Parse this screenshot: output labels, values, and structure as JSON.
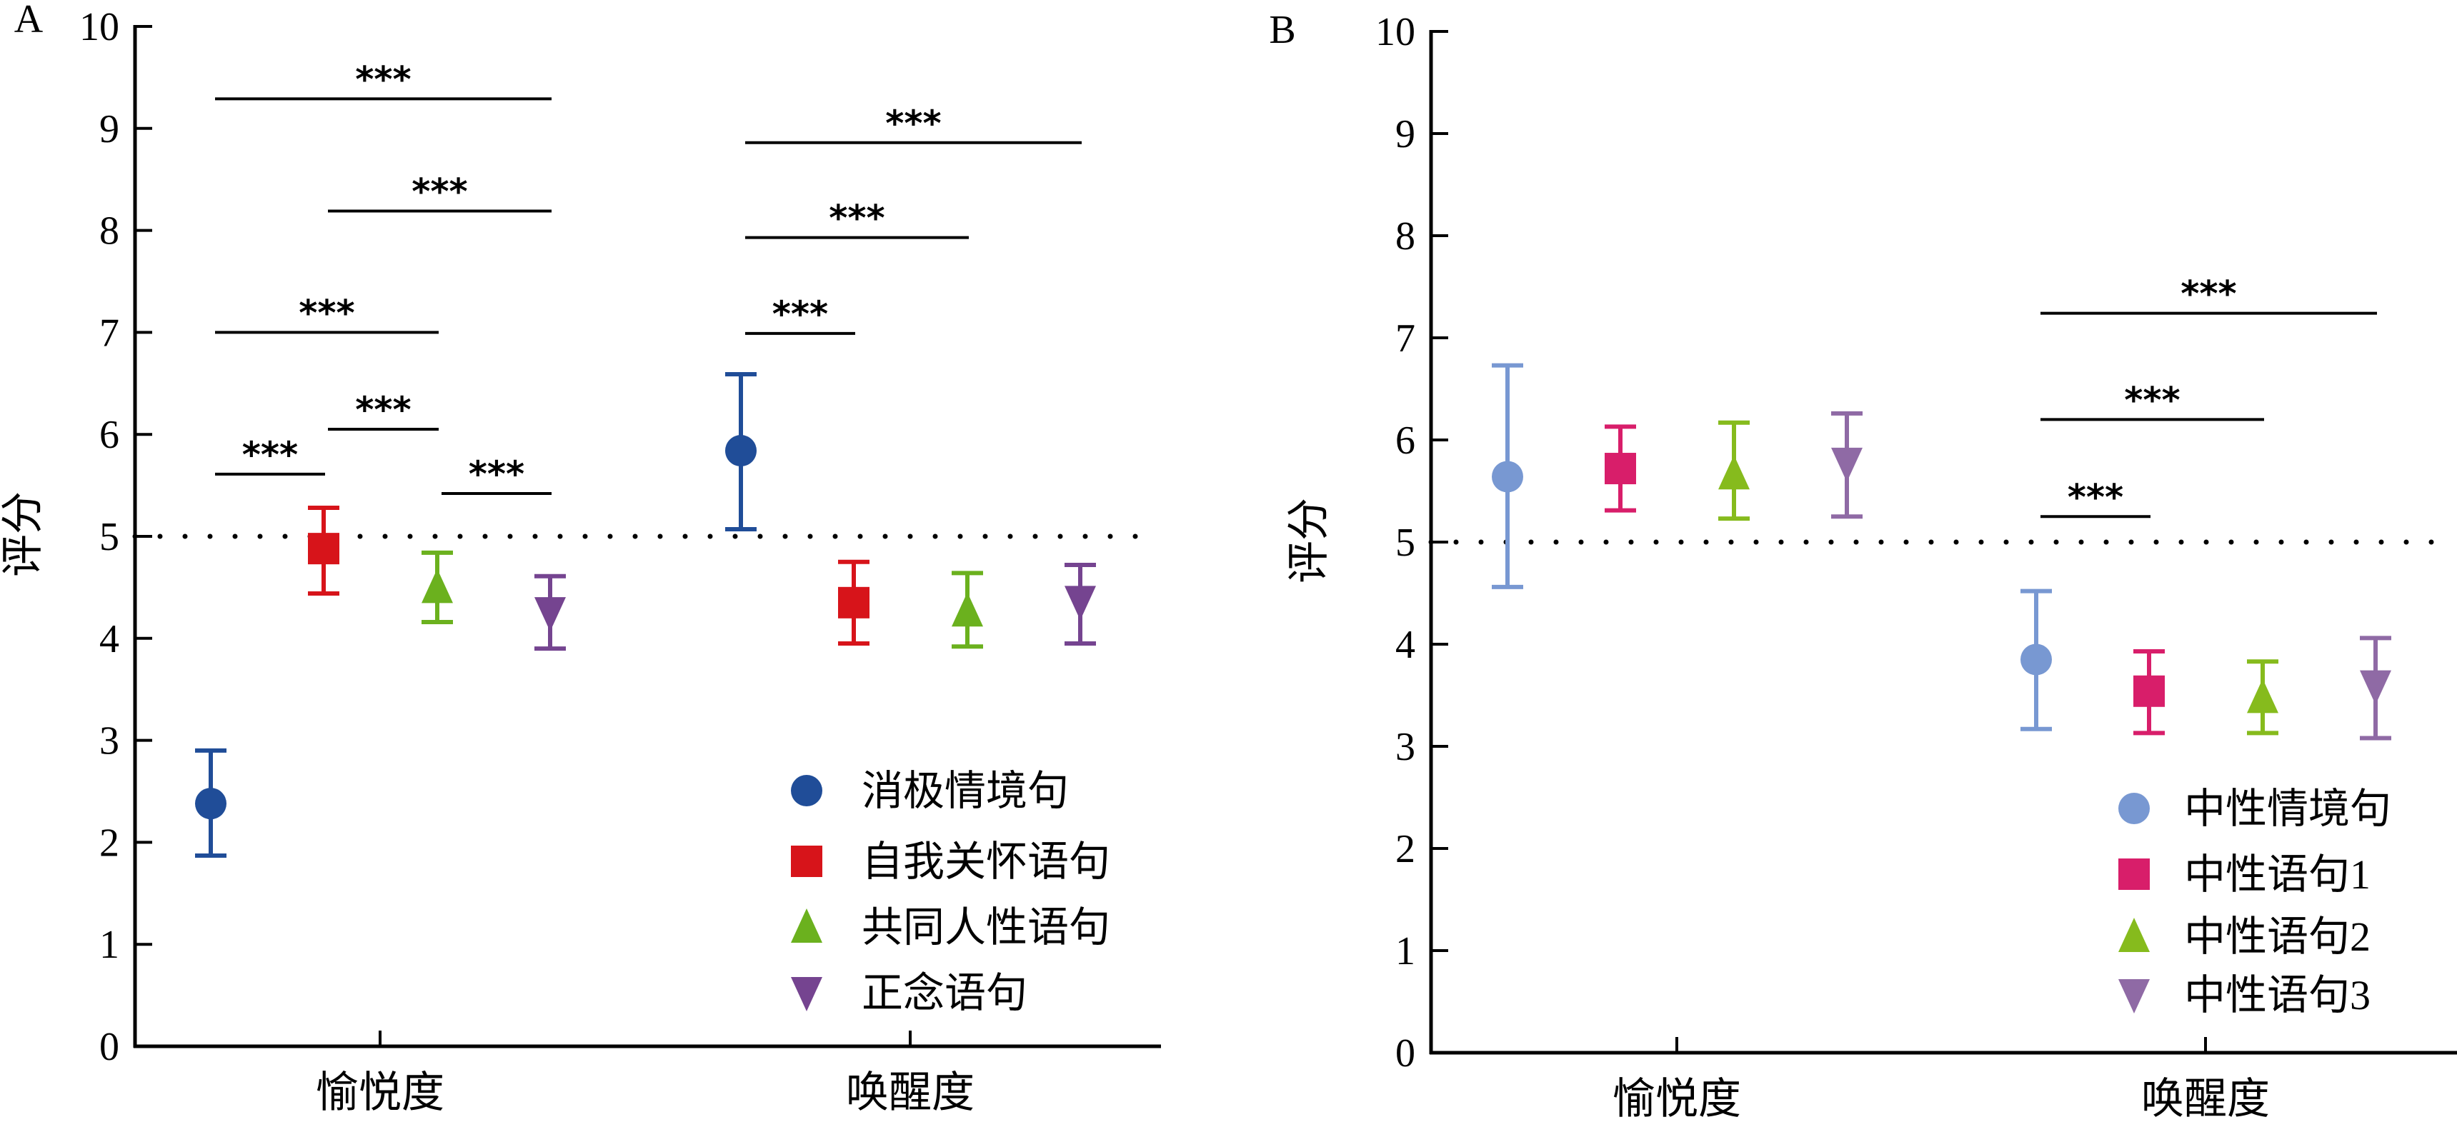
{
  "chart_data": [
    {
      "type": "scatter",
      "panel_label": "A",
      "ylabel": "评分",
      "xlabel": "",
      "ylim": [
        0,
        10
      ],
      "yticks": [
        "0",
        "1",
        "2",
        "3",
        "4",
        "5",
        "6",
        "7",
        "8",
        "9",
        "10"
      ],
      "categories": [
        "愉悦度",
        "唤醒度"
      ],
      "reference_line": 5,
      "legend_position": "bottom-right",
      "series": [
        {
          "name": "消极情境句",
          "marker": "circle",
          "color": "#204d98",
          "values": [
            2.38,
            5.84
          ],
          "err_low": [
            1.87,
            5.07
          ],
          "err_high": [
            2.9,
            6.59
          ]
        },
        {
          "name": "自我关怀语句",
          "marker": "square",
          "color": "#d7141a",
          "values": [
            4.88,
            4.35
          ],
          "err_low": [
            4.44,
            3.95
          ],
          "err_high": [
            5.28,
            4.75
          ]
        },
        {
          "name": "共同人性语句",
          "marker": "triangle-up",
          "color": "#6bb11e",
          "values": [
            4.5,
            4.27
          ],
          "err_low": [
            4.16,
            3.92
          ],
          "err_high": [
            4.84,
            4.64
          ]
        },
        {
          "name": "正念语句",
          "marker": "triangle-down",
          "color": "#754490",
          "values": [
            4.25,
            4.36
          ],
          "err_low": [
            3.9,
            3.95
          ],
          "err_high": [
            4.61,
            4.72
          ]
        }
      ],
      "significance": [
        {
          "category": 0,
          "from": 0,
          "to": 3,
          "y": 9.29,
          "label": "***"
        },
        {
          "category": 0,
          "from": 1,
          "to": 3,
          "y": 8.19,
          "label": "***"
        },
        {
          "category": 0,
          "from": 0,
          "to": 2,
          "y": 7.0,
          "label": "***"
        },
        {
          "category": 0,
          "from": 1,
          "to": 2,
          "y": 6.05,
          "label": "***"
        },
        {
          "category": 0,
          "from": 0,
          "to": 1,
          "y": 5.61,
          "label": "***"
        },
        {
          "category": 0,
          "from": 2,
          "to": 3,
          "y": 5.42,
          "label": "***"
        },
        {
          "category": 1,
          "from": 0,
          "to": 3,
          "y": 8.86,
          "label": "***"
        },
        {
          "category": 1,
          "from": 0,
          "to": 2,
          "y": 7.93,
          "label": "***"
        },
        {
          "category": 1,
          "from": 0,
          "to": 1,
          "y": 6.99,
          "label": "***"
        }
      ]
    },
    {
      "type": "scatter",
      "panel_label": "B",
      "ylabel": "评分",
      "xlabel": "",
      "ylim": [
        0,
        10
      ],
      "yticks": [
        "0",
        "1",
        "2",
        "3",
        "4",
        "5",
        "6",
        "7",
        "8",
        "9",
        "10"
      ],
      "categories": [
        "愉悦度",
        "唤醒度"
      ],
      "reference_line": 5,
      "legend_position": "bottom-right",
      "series": [
        {
          "name": "中性情境句",
          "marker": "circle",
          "color": "#7898d2",
          "values": [
            5.64,
            3.85
          ],
          "err_low": [
            4.56,
            3.17
          ],
          "err_high": [
            6.73,
            4.52
          ]
        },
        {
          "name": "中性语句1",
          "marker": "square",
          "color": "#d81e6a",
          "values": [
            5.72,
            3.54
          ],
          "err_low": [
            5.31,
            3.13
          ],
          "err_high": [
            6.13,
            3.93
          ]
        },
        {
          "name": "中性语句2",
          "marker": "triangle-up",
          "color": "#86bb1d",
          "values": [
            5.67,
            3.48
          ],
          "err_low": [
            5.23,
            3.13
          ],
          "err_high": [
            6.17,
            3.83
          ]
        },
        {
          "name": "中性语句3",
          "marker": "triangle-down",
          "color": "#8f6aa5",
          "values": [
            5.77,
            3.59
          ],
          "err_low": [
            5.25,
            3.08
          ],
          "err_high": [
            6.26,
            4.06
          ]
        }
      ],
      "significance": [
        {
          "category": 1,
          "from": 0,
          "to": 3,
          "y": 7.24,
          "label": "***"
        },
        {
          "category": 1,
          "from": 0,
          "to": 2,
          "y": 6.2,
          "label": "***"
        },
        {
          "category": 1,
          "from": 0,
          "to": 1,
          "y": 5.25,
          "label": "***"
        }
      ]
    }
  ]
}
